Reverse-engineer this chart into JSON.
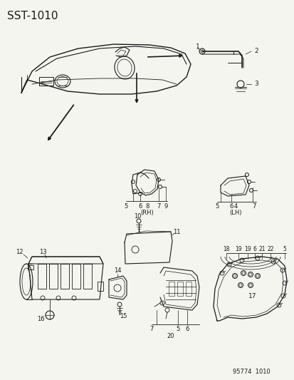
{
  "title": "SST–1010",
  "bg": "#f5f5f0",
  "lc": "#1a1a1a",
  "footer": "95774  1010",
  "figsize": [
    4.14,
    5.33
  ],
  "dpi": 100
}
